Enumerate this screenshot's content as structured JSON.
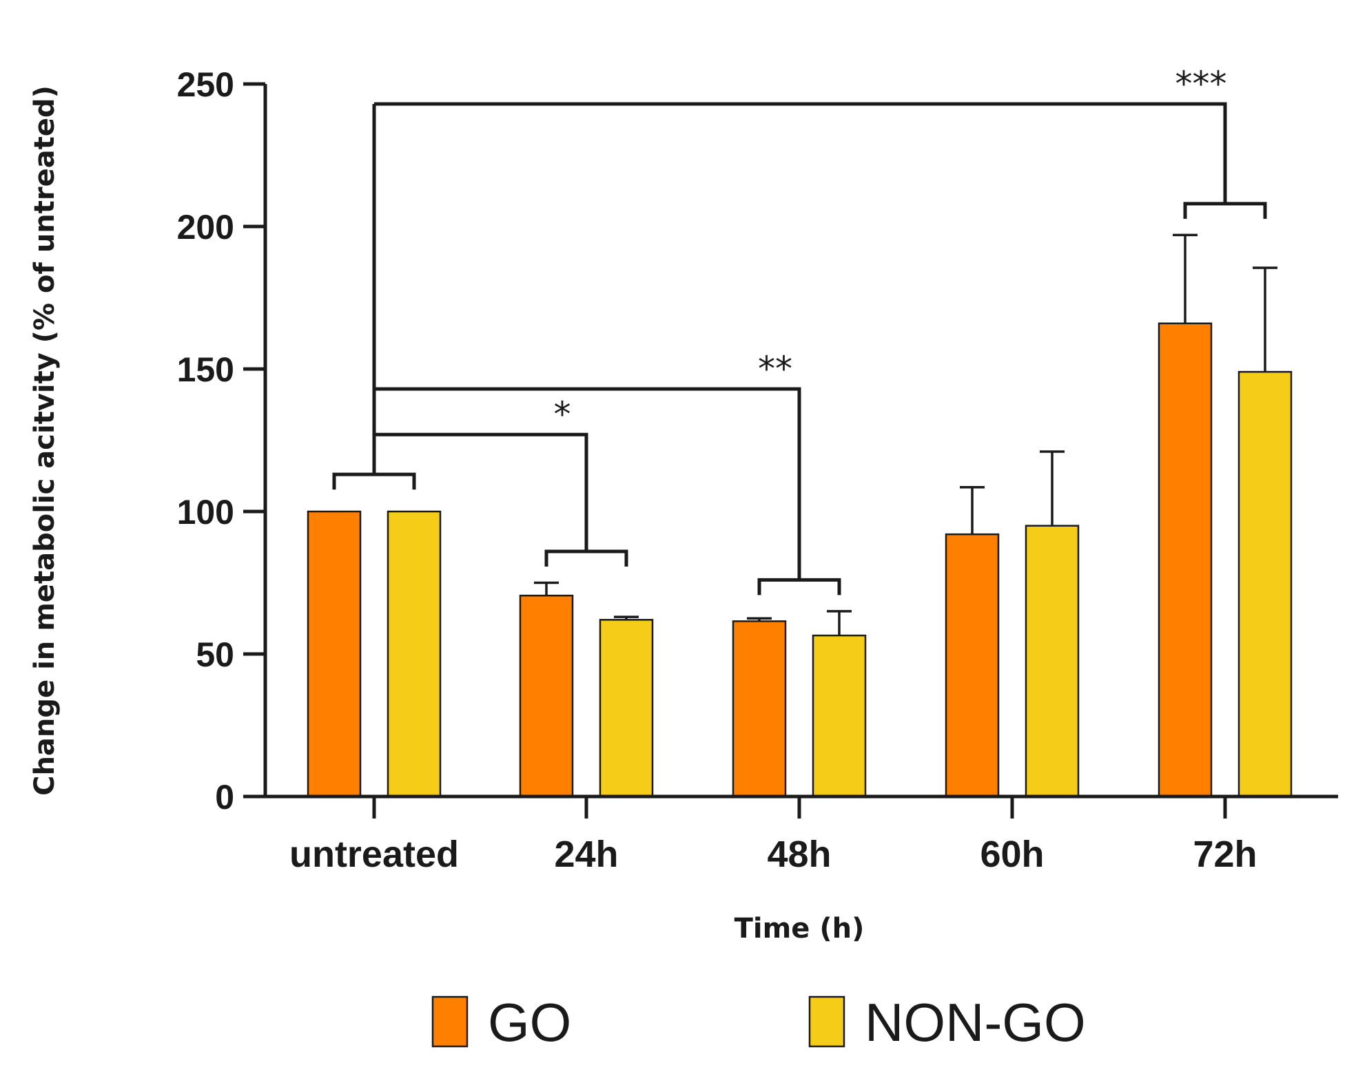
{
  "chart_data": {
    "type": "bar",
    "categories": [
      "untreated",
      "24h",
      "48h",
      "60h",
      "72h"
    ],
    "series": [
      {
        "name": "GO",
        "color": "#FF7F00",
        "values": [
          100,
          70.5,
          61.5,
          92,
          166
        ],
        "errors": [
          0,
          4.5,
          1,
          16.5,
          31
        ]
      },
      {
        "name": "NON-GO",
        "color": "#F5CC18",
        "values": [
          100,
          62,
          56.5,
          95,
          149
        ],
        "errors": [
          0,
          1,
          8.5,
          26,
          36.5
        ]
      }
    ],
    "xlabel": "Time (h)",
    "ylabel": "Change in metabolic acitvity (% of untreated)",
    "ylim": [
      0,
      250
    ],
    "yticks": [
      0,
      50,
      100,
      150,
      200,
      250
    ],
    "legend_position": "bottom",
    "grid": false,
    "significance": [
      {
        "from": "untreated",
        "to": "24h",
        "label": "*",
        "y": 127
      },
      {
        "from": "untreated",
        "to": "48h",
        "label": "**",
        "y": 143
      },
      {
        "from": "untreated",
        "to": "72h",
        "label": "***",
        "y": 243
      }
    ]
  }
}
